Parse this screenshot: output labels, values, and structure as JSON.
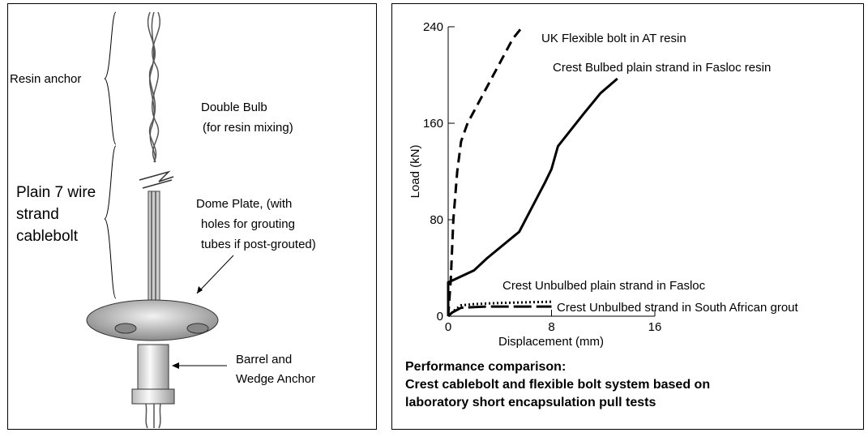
{
  "diagram": {
    "labels": [
      "Resin anchor",
      "Double Bulb",
      "(for resin mixing)",
      "Plain 7 wire",
      "strand",
      "cablebolt",
      "Dome Plate, (with",
      "holes for grouting",
      "tubes if post-grouted)",
      "Barrel and",
      "Wedge Anchor"
    ]
  },
  "chart_data": {
    "type": "line",
    "xlabel": "Displacement (mm)",
    "ylabel": "Load (kN)",
    "caption": [
      "Performance comparison:",
      "Crest cablebolt and flexible bolt system based on",
      "laboratory short encapsulation pull tests"
    ],
    "xlim": [
      0,
      16
    ],
    "ylim": [
      0,
      240
    ],
    "xticks": [
      0,
      8,
      16
    ],
    "yticks": [
      0,
      80,
      160,
      240
    ],
    "series": [
      {
        "name": "UK Flexible bolt in AT resin",
        "color": "#000000",
        "dash": "dashed",
        "x": [
          0,
          0.2,
          0.4,
          0.7,
          1,
          1.5,
          2,
          3,
          4,
          5,
          5.6
        ],
        "values": [
          0,
          30,
          80,
          120,
          145,
          160,
          170,
          190,
          210,
          230,
          238
        ]
      },
      {
        "name": "Crest Bulbed plain strand in Fasloc resin",
        "color": "#000000",
        "dash": "solid",
        "x": [
          0,
          0,
          2,
          3,
          5.5,
          7.5,
          8,
          8.5,
          10.5,
          11.8,
          13.1
        ],
        "values": [
          0,
          28,
          38,
          48,
          70,
          111,
          122,
          141,
          168,
          185,
          197
        ]
      },
      {
        "name": "Crest Unbulbed plain strand in Fasloc",
        "color": "#000000",
        "dash": "dotted",
        "x": [
          0,
          0.5,
          1,
          2,
          4,
          8
        ],
        "values": [
          0,
          5,
          9,
          10,
          11,
          12
        ]
      },
      {
        "name": "Crest Unbulbed strand in South African grout",
        "color": "#000000",
        "dash": "longdash",
        "x": [
          0,
          0.3,
          1,
          3,
          8
        ],
        "values": [
          0,
          3,
          7,
          8,
          8
        ]
      }
    ]
  }
}
